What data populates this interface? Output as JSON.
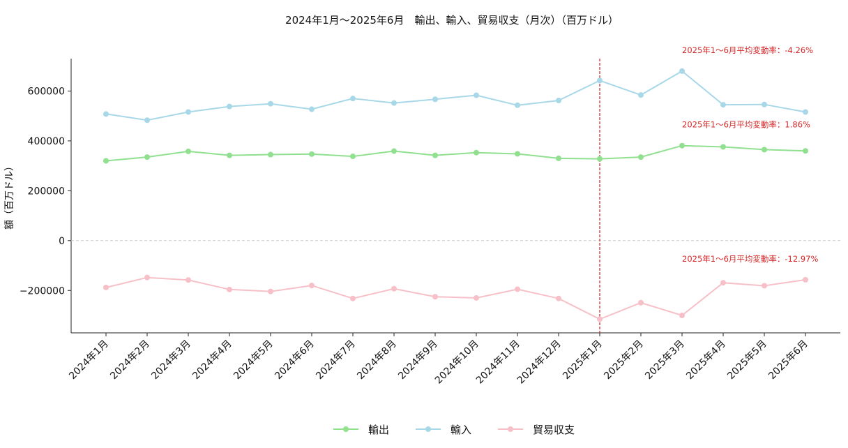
{
  "chart_data": {
    "type": "line",
    "title": "2024年1月～2025年6月　輸出、輸入、貿易収支（月次）（百万ドル）",
    "xlabel": "",
    "ylabel": "額（百万ドル）",
    "ylim": [
      -370000,
      730000
    ],
    "yticks": [
      -200000,
      0,
      200000,
      400000,
      600000
    ],
    "categories": [
      "2024年1月",
      "2024年2月",
      "2024年3月",
      "2024年4月",
      "2024年5月",
      "2024年6月",
      "2024年7月",
      "2024年8月",
      "2024年9月",
      "2024年10月",
      "2024年11月",
      "2024年12月",
      "2025年1月",
      "2025年2月",
      "2025年3月",
      "2025年4月",
      "2025年5月",
      "2025年6月"
    ],
    "series": [
      {
        "name": "輸出",
        "color": "#90e090",
        "values": [
          320000,
          335000,
          358000,
          342000,
          345000,
          347000,
          338000,
          359000,
          342000,
          353000,
          348000,
          330000,
          328000,
          335000,
          381000,
          376000,
          365000,
          360000
        ]
      },
      {
        "name": "輸入",
        "color": "#a8d8e8",
        "values": [
          508000,
          483000,
          516000,
          538000,
          549000,
          527000,
          570000,
          552000,
          567000,
          583000,
          543000,
          562000,
          642000,
          584000,
          680000,
          545000,
          546000,
          516000
        ]
      },
      {
        "name": "貿易収支",
        "color": "#f7c0c8",
        "values": [
          -188000,
          -148000,
          -158000,
          -196000,
          -204000,
          -180000,
          -232000,
          -193000,
          -225000,
          -230000,
          -195000,
          -232000,
          -315000,
          -249000,
          -300000,
          -169000,
          -181000,
          -157000
        ]
      }
    ],
    "reference_lines": {
      "zero_line": {
        "y": 0,
        "color": "#cccccc",
        "style": "dashed"
      },
      "vertical_marker": {
        "category": "2025年1月",
        "color": "#cc2222",
        "style": "dashed"
      }
    },
    "annotations": [
      {
        "series": "輸入",
        "text": "2025年1～6月平均変動率：-4.26%",
        "color": "#d62728"
      },
      {
        "series": "輸出",
        "text": "2025年1～6月平均変動率：1.86%",
        "color": "#d62728"
      },
      {
        "series": "貿易収支",
        "text": "2025年1～6月平均変動率：-12.97%",
        "color": "#d62728"
      }
    ],
    "legend": {
      "placement": "bottom-center"
    },
    "grid": false
  }
}
